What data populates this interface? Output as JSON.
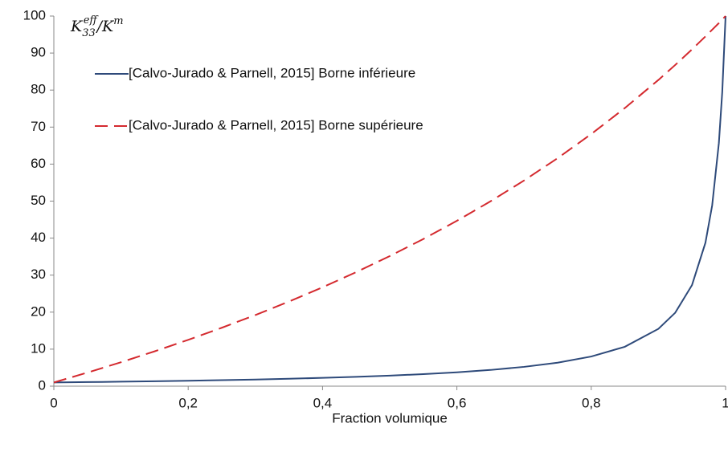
{
  "chart_data": {
    "type": "line",
    "xlabel": "Fraction volumique",
    "ylabel": {
      "base": "K",
      "sub": "33",
      "sup": "eff",
      "rest": "/K",
      "rest_sup": "m"
    },
    "x": [
      0,
      0.05,
      0.1,
      0.15,
      0.2,
      0.25,
      0.3,
      0.35,
      0.4,
      0.45,
      0.5,
      0.55,
      0.6,
      0.65,
      0.7,
      0.75,
      0.8,
      0.85,
      0.9,
      0.925,
      0.95,
      0.97,
      0.98,
      0.99,
      0.995,
      1
    ],
    "series": [
      {
        "name": "[Calvo-Jurado & Parnell, 2015] Borne inférieure",
        "color": "#2e4a7a",
        "dash": false,
        "values": [
          1,
          1.1,
          1.21,
          1.33,
          1.47,
          1.62,
          1.8,
          2.01,
          2.24,
          2.52,
          2.85,
          3.25,
          3.75,
          4.38,
          5.22,
          6.35,
          8.01,
          10.65,
          15.49,
          19.84,
          27.31,
          38.75,
          48.8,
          65.7,
          79.4,
          100
        ]
      },
      {
        "name": "[Calvo-Jurado & Parnell, 2015] Borne supérieure",
        "color": "#d42a2f",
        "dash": true,
        "values": [
          1,
          3.67,
          6.47,
          9.41,
          12.51,
          15.78,
          19.22,
          22.86,
          26.71,
          30.8,
          35.14,
          39.75,
          44.68,
          49.94,
          55.57,
          61.61,
          68.12,
          75.14,
          82.74,
          86.78,
          91.0,
          94.5,
          96.3,
          98.1,
          99.1,
          100
        ]
      }
    ],
    "xlim": [
      0,
      1
    ],
    "xticks": [
      0,
      {
        "value": 0.2,
        "label": "0,2"
      },
      {
        "value": 0.4,
        "label": "0,4"
      },
      {
        "value": 0.6,
        "label": "0,6"
      },
      {
        "value": 0.8,
        "label": "0,8"
      },
      1
    ],
    "ylim": [
      0,
      100
    ],
    "yticks": [
      0,
      10,
      20,
      30,
      40,
      50,
      60,
      70,
      80,
      90,
      100
    ],
    "grid": false,
    "legend": "top-left"
  }
}
